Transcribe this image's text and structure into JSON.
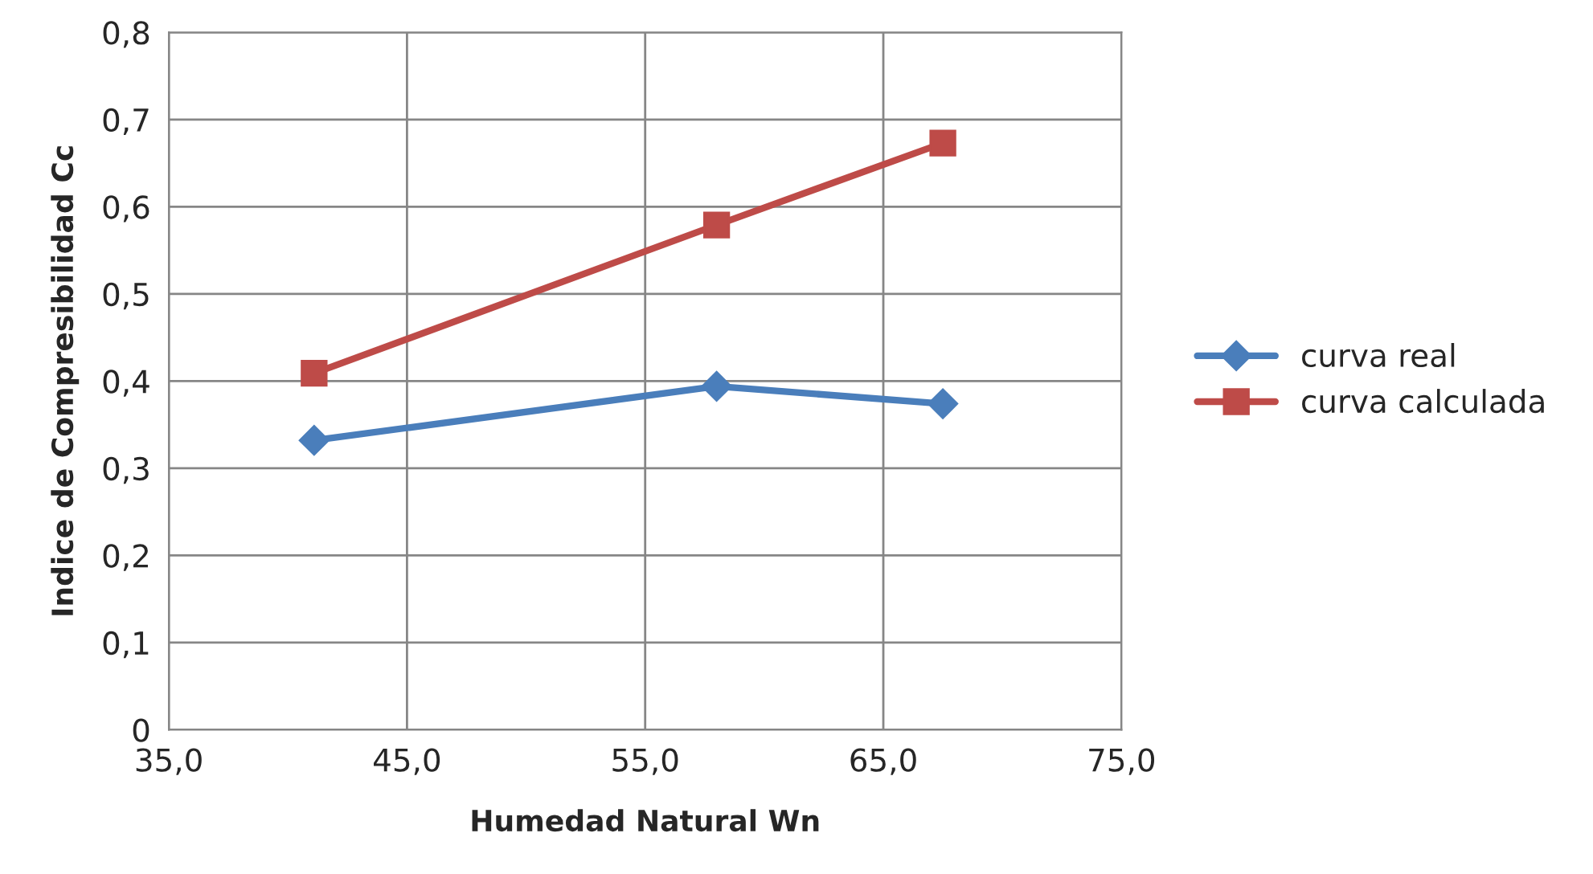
{
  "chart_data": {
    "type": "line",
    "xlabel": "Humedad Natural Wn",
    "ylabel": "Indice de Compresibilidad Cc",
    "xlim": [
      35,
      75
    ],
    "xticks": [
      {
        "value": 35,
        "label": "35,0"
      },
      {
        "value": 45,
        "label": "45,0"
      },
      {
        "value": 55,
        "label": "55,0"
      },
      {
        "value": 65,
        "label": "65,0"
      },
      {
        "value": 75,
        "label": "75,0"
      }
    ],
    "ylim": [
      0,
      0.8
    ],
    "yticks": [
      0,
      {
        "value": 0.1,
        "label": "0,1"
      },
      {
        "value": 0.2,
        "label": "0,2"
      },
      {
        "value": 0.3,
        "label": "0,3"
      },
      {
        "value": 0.4,
        "label": "0,4"
      },
      {
        "value": 0.5,
        "label": "0,5"
      },
      {
        "value": 0.6,
        "label": "0,6"
      },
      {
        "value": 0.7,
        "label": "0,7"
      },
      {
        "value": 0.8,
        "label": "0,8"
      }
    ],
    "grid": true,
    "legend": "right",
    "line_style": "solid",
    "series": [
      {
        "name": "curva real",
        "color": "#4a7ebb",
        "marker": "diamond",
        "x": [
          41.1,
          58.0,
          67.5
        ],
        "values": [
          0.332,
          0.394,
          0.374
        ]
      },
      {
        "name": "curva calculada",
        "color": "#be4b48",
        "marker": "square",
        "x": [
          41.1,
          58.0,
          67.5
        ],
        "values": [
          0.409,
          0.579,
          0.673
        ]
      }
    ]
  }
}
